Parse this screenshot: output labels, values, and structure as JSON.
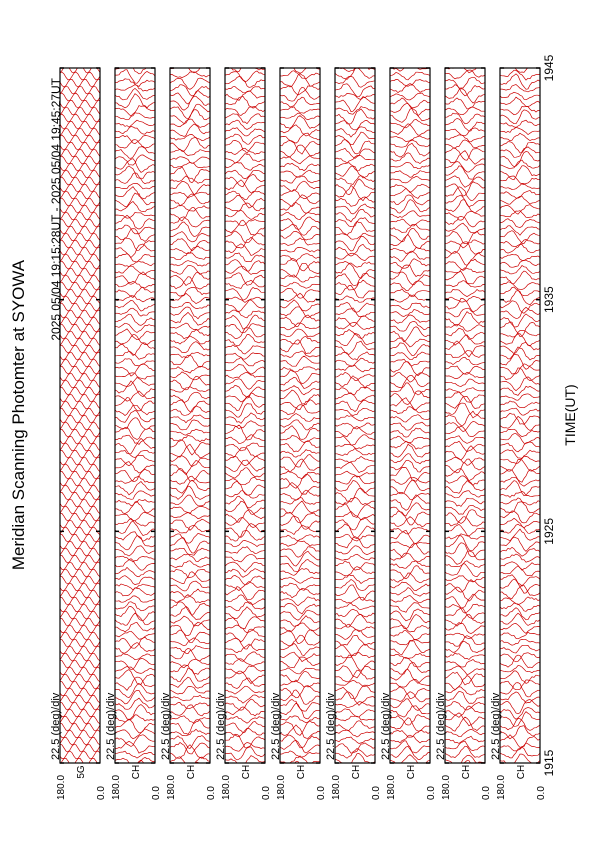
{
  "chart_data": {
    "type": "line",
    "title": "Meridian Scanning Photomter at SYOWA",
    "subtitle": "2025 05/04 19:15:28UT - 2025 05/04 19:45:27UT",
    "x_label": "TIME(UT)",
    "xlim": [
      1915,
      1945
    ],
    "xticks": [
      1915,
      1925,
      1935,
      1945
    ],
    "ylim": [
      0,
      180
    ],
    "yticks": [
      {
        "value": 0,
        "label": "0.0"
      },
      {
        "value": 180,
        "label": "180.0"
      }
    ],
    "color": "#cc0000",
    "panels": [
      {
        "scale": "22.5 (deg)/div",
        "channel": "5G"
      },
      {
        "scale": "22.5 (deg)/div",
        "channel": "CH"
      },
      {
        "scale": "22.5 (deg)/div",
        "channel": "CH"
      },
      {
        "scale": "22.5 (deg)/div",
        "channel": "CH"
      },
      {
        "scale": "22.5 (deg)/div",
        "channel": "CH"
      },
      {
        "scale": "22.5 (deg)/div",
        "channel": "CH"
      },
      {
        "scale": "22.5 (deg)/div",
        "channel": "CH"
      },
      {
        "scale": "22.5 (deg)/div",
        "channel": "CH"
      },
      {
        "scale": "22.5 (deg)/div",
        "channel": "CH"
      }
    ]
  }
}
